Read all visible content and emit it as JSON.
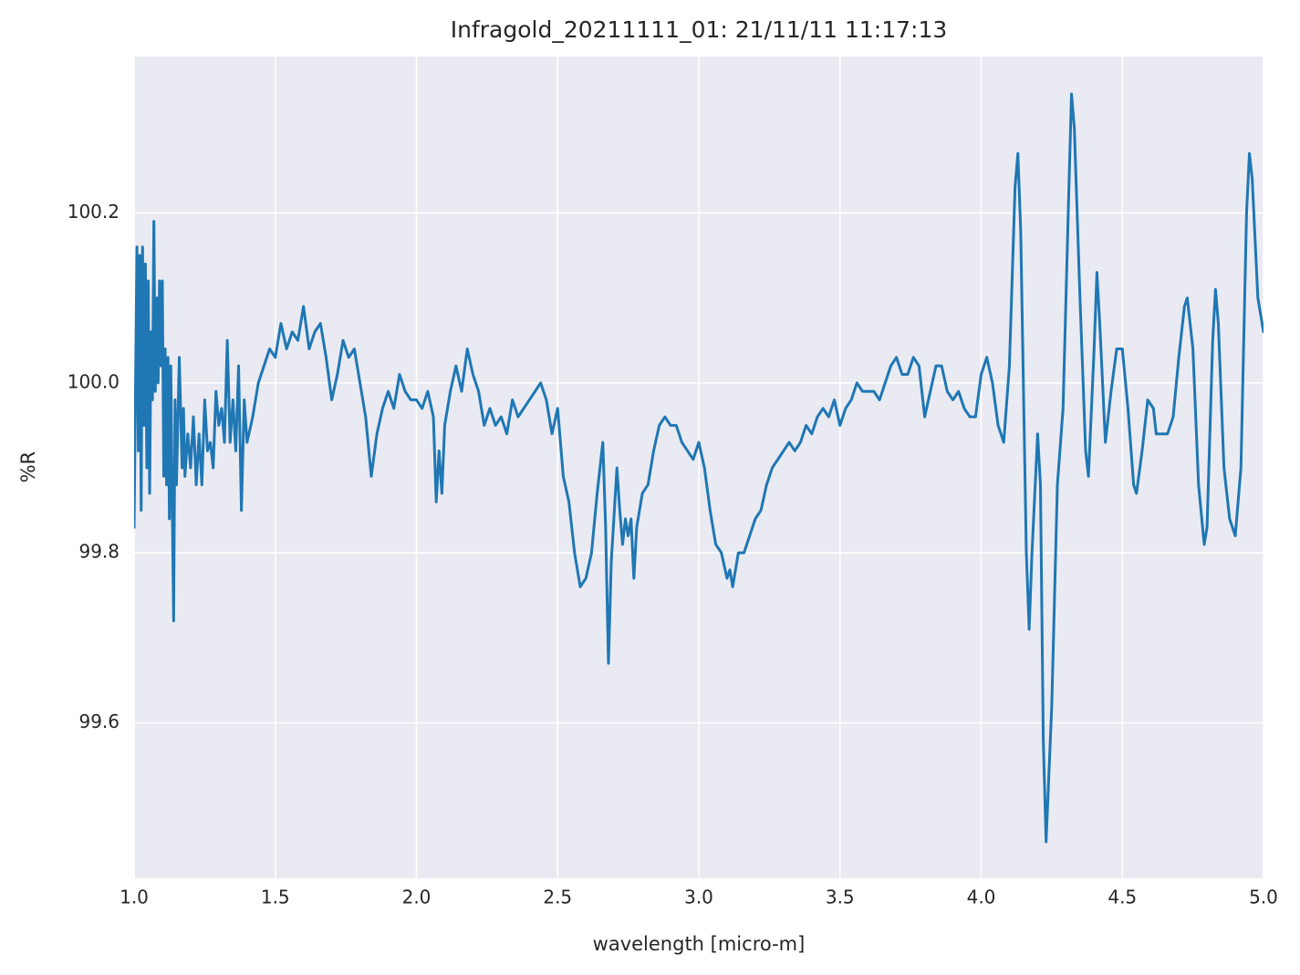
{
  "chart_data": {
    "type": "line",
    "title": "Infragold_20211111_01:  21/11/11 11:17:13",
    "xlabel": "wavelength [micro-m]",
    "ylabel": "%R",
    "color": "#1f77b4",
    "grid": true,
    "xlim": [
      1,
      5
    ],
    "ylim": [
      99.417,
      100.384
    ],
    "xticks": [
      {
        "value": 1,
        "label": "1.0"
      },
      1.5,
      {
        "value": 2,
        "label": "2.0"
      },
      2.5,
      {
        "value": 3,
        "label": "3.0"
      },
      3.5,
      {
        "value": 4,
        "label": "4.0"
      },
      4.5,
      {
        "value": 5,
        "label": "5.0"
      }
    ],
    "yticks": [
      99.6,
      99.8,
      {
        "value": 100,
        "label": "100.0"
      },
      100.2
    ],
    "x": [
      1.0,
      1.01,
      1.015,
      1.02,
      1.025,
      1.03,
      1.035,
      1.04,
      1.045,
      1.05,
      1.055,
      1.06,
      1.065,
      1.07,
      1.075,
      1.08,
      1.085,
      1.09,
      1.095,
      1.1,
      1.105,
      1.11,
      1.115,
      1.12,
      1.125,
      1.13,
      1.135,
      1.14,
      1.145,
      1.15,
      1.16,
      1.17,
      1.175,
      1.18,
      1.19,
      1.2,
      1.21,
      1.22,
      1.23,
      1.24,
      1.25,
      1.26,
      1.27,
      1.28,
      1.29,
      1.3,
      1.31,
      1.32,
      1.33,
      1.34,
      1.35,
      1.36,
      1.37,
      1.38,
      1.39,
      1.4,
      1.42,
      1.44,
      1.46,
      1.48,
      1.5,
      1.52,
      1.54,
      1.56,
      1.58,
      1.6,
      1.62,
      1.64,
      1.66,
      1.68,
      1.7,
      1.72,
      1.74,
      1.76,
      1.78,
      1.8,
      1.82,
      1.84,
      1.86,
      1.88,
      1.9,
      1.92,
      1.94,
      1.96,
      1.98,
      2.0,
      2.02,
      2.04,
      2.06,
      2.07,
      2.08,
      2.09,
      2.1,
      2.12,
      2.14,
      2.16,
      2.18,
      2.2,
      2.22,
      2.24,
      2.26,
      2.28,
      2.3,
      2.32,
      2.34,
      2.36,
      2.38,
      2.4,
      2.42,
      2.44,
      2.46,
      2.48,
      2.5,
      2.52,
      2.54,
      2.56,
      2.58,
      2.6,
      2.62,
      2.64,
      2.66,
      2.67,
      2.68,
      2.69,
      2.71,
      2.72,
      2.73,
      2.74,
      2.75,
      2.76,
      2.77,
      2.78,
      2.8,
      2.82,
      2.84,
      2.86,
      2.88,
      2.9,
      2.92,
      2.94,
      2.96,
      2.98,
      3.0,
      3.02,
      3.04,
      3.06,
      3.08,
      3.1,
      3.11,
      3.12,
      3.14,
      3.16,
      3.18,
      3.2,
      3.22,
      3.24,
      3.26,
      3.28,
      3.3,
      3.32,
      3.34,
      3.36,
      3.38,
      3.4,
      3.42,
      3.44,
      3.46,
      3.48,
      3.5,
      3.52,
      3.54,
      3.56,
      3.58,
      3.6,
      3.62,
      3.64,
      3.66,
      3.68,
      3.7,
      3.72,
      3.74,
      3.76,
      3.78,
      3.8,
      3.82,
      3.84,
      3.86,
      3.88,
      3.9,
      3.92,
      3.94,
      3.96,
      3.98,
      4.0,
      4.02,
      4.04,
      4.06,
      4.08,
      4.1,
      4.12,
      4.13,
      4.14,
      4.16,
      4.17,
      4.18,
      4.2,
      4.21,
      4.22,
      4.23,
      4.25,
      4.27,
      4.29,
      4.31,
      4.32,
      4.33,
      4.35,
      4.37,
      4.38,
      4.4,
      4.41,
      4.42,
      4.44,
      4.46,
      4.48,
      4.5,
      4.52,
      4.54,
      4.55,
      4.57,
      4.59,
      4.61,
      4.62,
      4.64,
      4.66,
      4.68,
      4.7,
      4.72,
      4.73,
      4.75,
      4.77,
      4.79,
      4.8,
      4.82,
      4.83,
      4.84,
      4.86,
      4.88,
      4.9,
      4.92,
      4.94,
      4.95,
      4.96,
      4.98,
      5.0
    ],
    "values": [
      99.83,
      100.16,
      99.92,
      100.15,
      99.85,
      100.16,
      99.95,
      100.14,
      99.9,
      100.12,
      99.87,
      100.06,
      99.98,
      100.19,
      99.99,
      100.1,
      100.0,
      100.12,
      100.02,
      100.12,
      99.89,
      100.04,
      99.88,
      100.03,
      99.84,
      100.02,
      99.86,
      99.72,
      99.98,
      99.88,
      100.03,
      99.9,
      99.97,
      99.89,
      99.94,
      99.9,
      99.96,
      99.88,
      99.94,
      99.88,
      99.98,
      99.92,
      99.93,
      99.9,
      99.99,
      99.95,
      99.97,
      99.93,
      100.05,
      99.93,
      99.98,
      99.92,
      100.02,
      99.85,
      99.98,
      99.93,
      99.96,
      100.0,
      100.02,
      100.04,
      100.03,
      100.07,
      100.04,
      100.06,
      100.05,
      100.09,
      100.04,
      100.06,
      100.07,
      100.03,
      99.98,
      100.01,
      100.05,
      100.03,
      100.04,
      100.0,
      99.96,
      99.89,
      99.94,
      99.97,
      99.99,
      99.97,
      100.01,
      99.99,
      99.98,
      99.98,
      99.97,
      99.99,
      99.96,
      99.86,
      99.92,
      99.87,
      99.95,
      99.99,
      100.02,
      99.99,
      100.04,
      100.01,
      99.99,
      99.95,
      99.97,
      99.95,
      99.96,
      99.94,
      99.98,
      99.96,
      99.97,
      99.98,
      99.99,
      100.0,
      99.98,
      99.94,
      99.97,
      99.89,
      99.86,
      99.8,
      99.76,
      99.77,
      99.8,
      99.87,
      99.93,
      99.83,
      99.67,
      99.79,
      99.9,
      99.85,
      99.81,
      99.84,
      99.82,
      99.84,
      99.77,
      99.83,
      99.87,
      99.88,
      99.92,
      99.95,
      99.96,
      99.95,
      99.95,
      99.93,
      99.92,
      99.91,
      99.93,
      99.9,
      99.85,
      99.81,
      99.8,
      99.77,
      99.78,
      99.76,
      99.8,
      99.8,
      99.82,
      99.84,
      99.85,
      99.88,
      99.9,
      99.91,
      99.92,
      99.93,
      99.92,
      99.93,
      99.95,
      99.94,
      99.96,
      99.97,
      99.96,
      99.98,
      99.95,
      99.97,
      99.98,
      100.0,
      99.99,
      99.99,
      99.99,
      99.98,
      100.0,
      100.02,
      100.03,
      100.01,
      100.01,
      100.03,
      100.02,
      99.96,
      99.99,
      100.02,
      100.02,
      99.99,
      99.98,
      99.99,
      99.97,
      99.96,
      99.96,
      100.01,
      100.03,
      100.0,
      99.95,
      99.93,
      100.02,
      100.23,
      100.27,
      100.18,
      99.8,
      99.71,
      99.8,
      99.94,
      99.88,
      99.58,
      99.46,
      99.62,
      99.88,
      99.97,
      100.22,
      100.34,
      100.3,
      100.1,
      99.92,
      99.89,
      100.04,
      100.13,
      100.07,
      99.93,
      99.99,
      100.04,
      100.04,
      99.97,
      99.88,
      99.87,
      99.92,
      99.98,
      99.97,
      99.94,
      99.94,
      99.94,
      99.96,
      100.03,
      100.09,
      100.1,
      100.04,
      99.88,
      99.81,
      99.83,
      100.05,
      100.11,
      100.07,
      99.9,
      99.84,
      99.82,
      99.9,
      100.2,
      100.27,
      100.24,
      100.1,
      100.06
    ]
  }
}
